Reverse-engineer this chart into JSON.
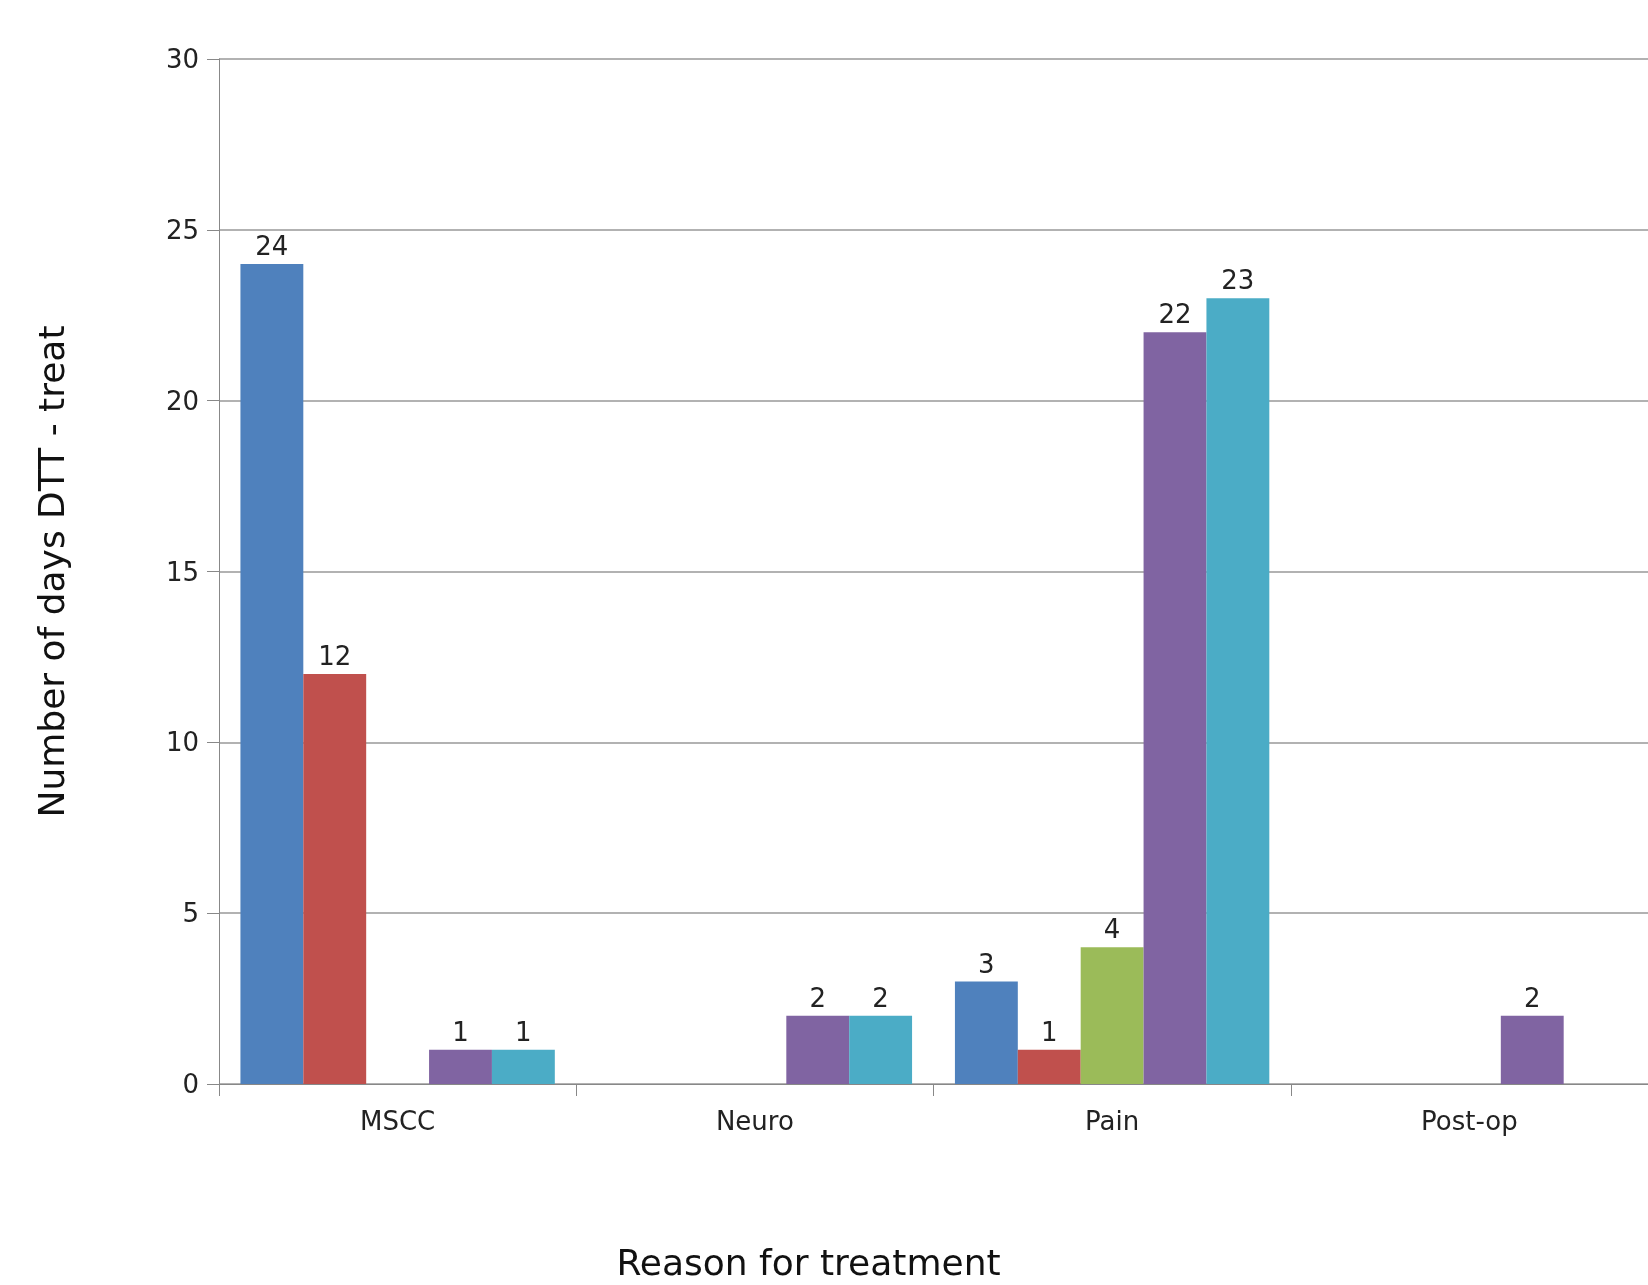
{
  "chart_data": {
    "type": "bar",
    "xlabel": "Reason for treatment",
    "ylabel": "Number of days DTT - treat",
    "categories": [
      "MSCC",
      "Neuro",
      "Pain",
      "Post-op"
    ],
    "series": [
      {
        "color": "#4f81bd",
        "values": [
          24,
          null,
          3,
          null
        ],
        "value_labels": [
          "24",
          null,
          "3",
          null
        ]
      },
      {
        "color": "#c0504d",
        "values": [
          12,
          null,
          1,
          null
        ],
        "value_labels": [
          "12",
          null,
          "1",
          null
        ]
      },
      {
        "color": "#9bbb59",
        "values": [
          null,
          null,
          4,
          null
        ],
        "value_labels": [
          null,
          null,
          "4",
          null
        ]
      },
      {
        "color": "#8064a2",
        "values": [
          1,
          2,
          22,
          2
        ],
        "value_labels": [
          "1",
          "2",
          "22",
          "2"
        ]
      },
      {
        "color": "#4bacc6",
        "values": [
          1,
          2,
          23,
          null
        ],
        "value_labels": [
          "1",
          "2",
          "23",
          null
        ]
      }
    ],
    "ylim": [
      0,
      30
    ],
    "yticks": [
      0,
      5,
      10,
      15,
      20,
      25,
      30
    ],
    "grid": "y"
  }
}
